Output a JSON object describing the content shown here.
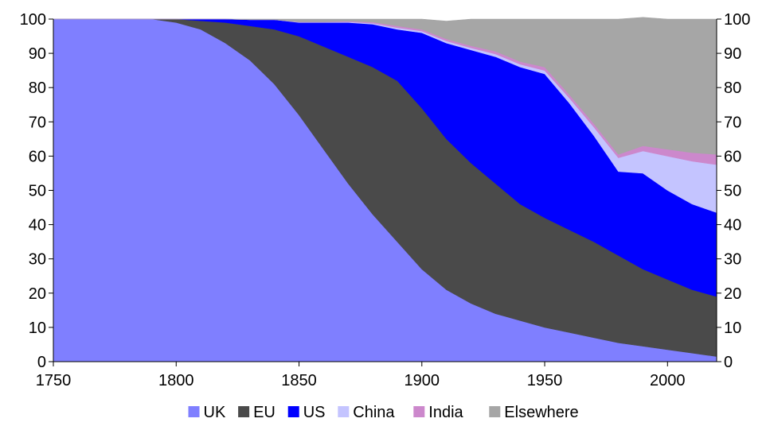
{
  "chart_data": {
    "type": "area",
    "stacked": true,
    "x": [
      1750,
      1790,
      1800,
      1810,
      1820,
      1830,
      1840,
      1850,
      1860,
      1870,
      1880,
      1890,
      1900,
      1910,
      1920,
      1930,
      1940,
      1950,
      1960,
      1970,
      1980,
      1990,
      2000,
      2010,
      2020
    ],
    "series": [
      {
        "name": "UK",
        "color": "#7f7fff",
        "values": [
          100,
          100,
          99,
          97,
          93,
          88,
          81,
          72,
          62,
          52,
          43,
          35,
          27,
          21,
          17,
          14,
          12,
          10,
          8.5,
          7,
          5.5,
          4.5,
          3.5,
          2.5,
          1.5
        ]
      },
      {
        "name": "EU",
        "color": "#4a4a4a",
        "values": [
          0,
          0,
          1,
          2.5,
          6,
          10,
          16,
          23,
          30,
          37,
          43,
          47,
          47,
          44,
          41,
          38,
          34,
          32,
          30,
          28,
          25.5,
          22.5,
          20.5,
          18.5,
          17.5
        ]
      },
      {
        "name": "US",
        "color": "#0000ff",
        "values": [
          0,
          0,
          0,
          0.5,
          1,
          1.8,
          2.8,
          4,
          7,
          10,
          12.5,
          15,
          22,
          28,
          33,
          37,
          40,
          42,
          37,
          31,
          24.5,
          28,
          26,
          25,
          24.5
        ]
      },
      {
        "name": "China",
        "color": "#c4c4ff",
        "values": [
          0,
          0,
          0,
          0,
          0,
          0,
          0,
          0.1,
          0.1,
          0.2,
          0.3,
          0.5,
          0.5,
          0.6,
          0.6,
          0.8,
          0.8,
          1,
          1.5,
          2.5,
          4,
          6.5,
          10,
          12.5,
          14
        ]
      },
      {
        "name": "India",
        "color": "#cc88cc",
        "values": [
          0,
          0,
          0,
          0,
          0,
          0,
          0,
          0.1,
          0.1,
          0.2,
          0.3,
          0.5,
          0.5,
          0.6,
          0.6,
          0.8,
          0.8,
          1,
          1,
          1,
          1,
          1.5,
          2,
          2.5,
          3
        ]
      },
      {
        "name": "Elsewhere",
        "color": "#a6a6a6",
        "values": [
          0,
          0,
          0,
          0,
          0,
          0.2,
          0.2,
          0.8,
          0.8,
          0.6,
          0.9,
          2,
          3,
          5.2,
          7.8,
          9.4,
          12.4,
          14,
          22,
          30.5,
          39.5,
          37.5,
          38,
          39,
          39.5
        ]
      }
    ],
    "xlim": [
      1750,
      2020
    ],
    "ylim": [
      0,
      100
    ],
    "x_ticks": [
      "1750",
      "1800",
      "1850",
      "1900",
      "1950",
      "2000"
    ],
    "y_ticks": [
      "0",
      "10",
      "20",
      "30",
      "40",
      "50",
      "60",
      "70",
      "80",
      "90",
      "100"
    ],
    "y_axis_both_sides": true,
    "legend_position": "bottom",
    "grid": false
  }
}
